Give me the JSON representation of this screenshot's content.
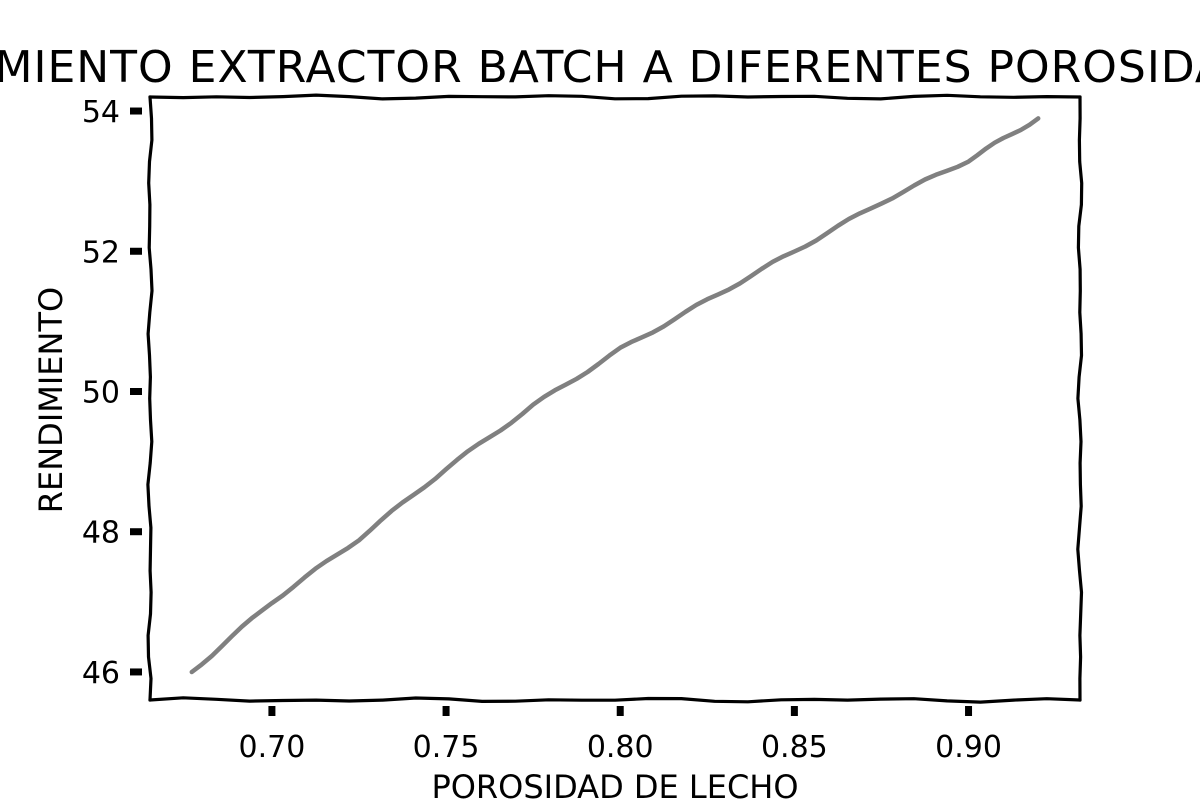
{
  "chart_data": {
    "type": "line",
    "title": "RENDIMIENTO EXTRACTOR BATCH A DIFERENTES POROSIDADES",
    "xlabel": "POROSIDAD DE LECHO",
    "ylabel": "RENDIMIENTO",
    "xlim": [
      0.665,
      0.932
    ],
    "ylim": [
      45.6,
      54.2
    ],
    "x_ticks": [
      0.7,
      0.75,
      0.8,
      0.85,
      0.9
    ],
    "x_tick_labels": [
      "0.70",
      "0.75",
      "0.80",
      "0.85",
      "0.90"
    ],
    "y_ticks": [
      46,
      48,
      50,
      52,
      54
    ],
    "y_tick_labels": [
      "46",
      "48",
      "50",
      "52",
      "54"
    ],
    "grid": false,
    "series": [
      {
        "color": "#808080",
        "x": [
          0.677,
          0.7,
          0.725,
          0.75,
          0.775,
          0.8,
          0.825,
          0.85,
          0.875,
          0.9,
          0.92
        ],
        "y": [
          46.0,
          47.0,
          47.9,
          48.9,
          49.8,
          50.6,
          51.3,
          52.0,
          52.7,
          53.3,
          53.9
        ]
      }
    ]
  }
}
